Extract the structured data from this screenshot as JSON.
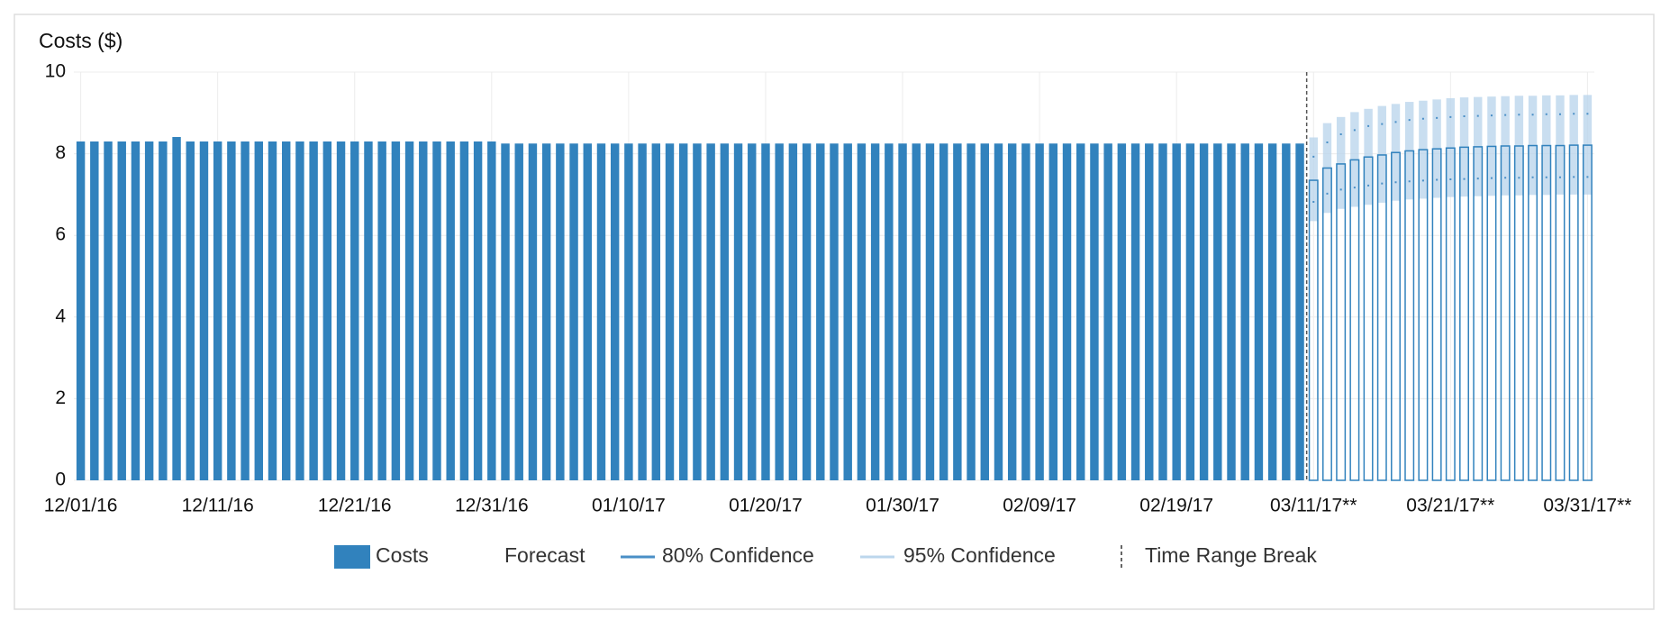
{
  "chart_data": {
    "type": "bar",
    "title": "Costs ($)",
    "categories": [
      "12/01/16",
      null,
      null,
      null,
      null,
      null,
      null,
      null,
      null,
      null,
      "12/11/16",
      null,
      null,
      null,
      null,
      null,
      null,
      null,
      null,
      null,
      "12/21/16",
      null,
      null,
      null,
      null,
      null,
      null,
      null,
      null,
      null,
      "12/31/16",
      null,
      null,
      null,
      null,
      null,
      null,
      null,
      null,
      null,
      "01/10/17",
      null,
      null,
      null,
      null,
      null,
      null,
      null,
      null,
      null,
      "01/20/17",
      null,
      null,
      null,
      null,
      null,
      null,
      null,
      null,
      null,
      "01/30/17",
      null,
      null,
      null,
      null,
      null,
      null,
      null,
      null,
      null,
      "02/09/17",
      null,
      null,
      null,
      null,
      null,
      null,
      null,
      null,
      null,
      "02/19/17",
      null,
      null,
      null,
      null,
      null,
      null,
      null,
      null,
      null,
      "03/11/17**",
      null,
      null,
      null,
      null,
      null,
      null,
      null,
      null,
      null,
      "03/21/17**",
      null,
      null,
      null,
      null,
      null,
      null,
      null,
      null,
      null,
      "03/31/17**"
    ],
    "series": [
      {
        "name": "Costs",
        "color": "#3182bd",
        "values": [
          8.3,
          8.3,
          8.3,
          8.3,
          8.3,
          8.3,
          8.3,
          8.41,
          8.3,
          8.3,
          8.3,
          8.3,
          8.3,
          8.3,
          8.3,
          8.3,
          8.3,
          8.3,
          8.3,
          8.3,
          8.3,
          8.3,
          8.3,
          8.3,
          8.3,
          8.3,
          8.3,
          8.3,
          8.3,
          8.3,
          8.3,
          8.25,
          8.25,
          8.25,
          8.25,
          8.25,
          8.25,
          8.25,
          8.25,
          8.25,
          8.25,
          8.25,
          8.25,
          8.25,
          8.25,
          8.25,
          8.25,
          8.25,
          8.25,
          8.25,
          8.25,
          8.25,
          8.25,
          8.25,
          8.25,
          8.25,
          8.25,
          8.25,
          8.25,
          8.25,
          8.25,
          8.25,
          8.25,
          8.25,
          8.25,
          8.25,
          8.25,
          8.25,
          8.25,
          8.25,
          8.25,
          8.25,
          8.25,
          8.25,
          8.25,
          8.25,
          8.25,
          8.25,
          8.25,
          8.25,
          8.25,
          8.25,
          8.25,
          8.25,
          8.25,
          8.25,
          8.25,
          8.25,
          8.25,
          8.25,
          null,
          null,
          null,
          null,
          null,
          null,
          null,
          null,
          null,
          null,
          null,
          null,
          null,
          null,
          null,
          null,
          null,
          null,
          null,
          null,
          null
        ]
      },
      {
        "name": "Forecast",
        "color": "#3182bd",
        "values": [
          null,
          null,
          null,
          null,
          null,
          null,
          null,
          null,
          null,
          null,
          null,
          null,
          null,
          null,
          null,
          null,
          null,
          null,
          null,
          null,
          null,
          null,
          null,
          null,
          null,
          null,
          null,
          null,
          null,
          null,
          null,
          null,
          null,
          null,
          null,
          null,
          null,
          null,
          null,
          null,
          null,
          null,
          null,
          null,
          null,
          null,
          null,
          null,
          null,
          null,
          null,
          null,
          null,
          null,
          null,
          null,
          null,
          null,
          null,
          null,
          null,
          null,
          null,
          null,
          null,
          null,
          null,
          null,
          null,
          null,
          null,
          null,
          null,
          null,
          null,
          null,
          null,
          null,
          null,
          null,
          null,
          null,
          null,
          null,
          null,
          null,
          null,
          null,
          null,
          null,
          7.35,
          7.65,
          7.75,
          7.85,
          7.92,
          7.97,
          8.03,
          8.07,
          8.1,
          8.12,
          8.14,
          8.16,
          8.17,
          8.18,
          8.19,
          8.19,
          8.2,
          8.2,
          8.2,
          8.21,
          8.21
        ]
      },
      {
        "name": "80% Confidence",
        "color": "#4a8fc6",
        "low": [
          null,
          null,
          null,
          null,
          null,
          null,
          null,
          null,
          null,
          null,
          null,
          null,
          null,
          null,
          null,
          null,
          null,
          null,
          null,
          null,
          null,
          null,
          null,
          null,
          null,
          null,
          null,
          null,
          null,
          null,
          null,
          null,
          null,
          null,
          null,
          null,
          null,
          null,
          null,
          null,
          null,
          null,
          null,
          null,
          null,
          null,
          null,
          null,
          null,
          null,
          null,
          null,
          null,
          null,
          null,
          null,
          null,
          null,
          null,
          null,
          null,
          null,
          null,
          null,
          null,
          null,
          null,
          null,
          null,
          null,
          null,
          null,
          null,
          null,
          null,
          null,
          null,
          null,
          null,
          null,
          null,
          null,
          null,
          null,
          null,
          null,
          null,
          null,
          null,
          null,
          6.8,
          7.0,
          7.1,
          7.15,
          7.2,
          7.25,
          7.28,
          7.3,
          7.32,
          7.34,
          7.35,
          7.36,
          7.37,
          7.38,
          7.39,
          7.39,
          7.4,
          7.4,
          7.4,
          7.41,
          7.41
        ],
        "high": [
          null,
          null,
          null,
          null,
          null,
          null,
          null,
          null,
          null,
          null,
          null,
          null,
          null,
          null,
          null,
          null,
          null,
          null,
          null,
          null,
          null,
          null,
          null,
          null,
          null,
          null,
          null,
          null,
          null,
          null,
          null,
          null,
          null,
          null,
          null,
          null,
          null,
          null,
          null,
          null,
          null,
          null,
          null,
          null,
          null,
          null,
          null,
          null,
          null,
          null,
          null,
          null,
          null,
          null,
          null,
          null,
          null,
          null,
          null,
          null,
          null,
          null,
          null,
          null,
          null,
          null,
          null,
          null,
          null,
          null,
          null,
          null,
          null,
          null,
          null,
          null,
          null,
          null,
          null,
          null,
          null,
          null,
          null,
          null,
          null,
          null,
          null,
          null,
          null,
          null,
          7.95,
          8.3,
          8.5,
          8.6,
          8.7,
          8.75,
          8.8,
          8.85,
          8.88,
          8.9,
          8.92,
          8.94,
          8.95,
          8.96,
          8.97,
          8.98,
          8.98,
          8.99,
          8.99,
          9.0,
          9.0
        ]
      },
      {
        "name": "95% Confidence",
        "color": "#bcd6ec",
        "low": [
          null,
          null,
          null,
          null,
          null,
          null,
          null,
          null,
          null,
          null,
          null,
          null,
          null,
          null,
          null,
          null,
          null,
          null,
          null,
          null,
          null,
          null,
          null,
          null,
          null,
          null,
          null,
          null,
          null,
          null,
          null,
          null,
          null,
          null,
          null,
          null,
          null,
          null,
          null,
          null,
          null,
          null,
          null,
          null,
          null,
          null,
          null,
          null,
          null,
          null,
          null,
          null,
          null,
          null,
          null,
          null,
          null,
          null,
          null,
          null,
          null,
          null,
          null,
          null,
          null,
          null,
          null,
          null,
          null,
          null,
          null,
          null,
          null,
          null,
          null,
          null,
          null,
          null,
          null,
          null,
          null,
          null,
          null,
          null,
          null,
          null,
          null,
          null,
          null,
          null,
          6.35,
          6.55,
          6.65,
          6.7,
          6.75,
          6.8,
          6.85,
          6.88,
          6.9,
          6.92,
          6.94,
          6.95,
          6.96,
          6.97,
          6.98,
          6.98,
          6.99,
          6.99,
          7.0,
          7.0,
          7.0
        ],
        "high": [
          null,
          null,
          null,
          null,
          null,
          null,
          null,
          null,
          null,
          null,
          null,
          null,
          null,
          null,
          null,
          null,
          null,
          null,
          null,
          null,
          null,
          null,
          null,
          null,
          null,
          null,
          null,
          null,
          null,
          null,
          null,
          null,
          null,
          null,
          null,
          null,
          null,
          null,
          null,
          null,
          null,
          null,
          null,
          null,
          null,
          null,
          null,
          null,
          null,
          null,
          null,
          null,
          null,
          null,
          null,
          null,
          null,
          null,
          null,
          null,
          null,
          null,
          null,
          null,
          null,
          null,
          null,
          null,
          null,
          null,
          null,
          null,
          null,
          null,
          null,
          null,
          null,
          null,
          null,
          null,
          null,
          null,
          null,
          null,
          null,
          null,
          null,
          null,
          null,
          null,
          8.4,
          8.75,
          8.9,
          9.02,
          9.1,
          9.17,
          9.22,
          9.27,
          9.3,
          9.33,
          9.36,
          9.38,
          9.39,
          9.4,
          9.41,
          9.42,
          9.42,
          9.43,
          9.43,
          9.44,
          9.44
        ]
      }
    ],
    "break_label": "Time Range Break",
    "ylim": [
      0,
      10
    ],
    "yticks": [
      0,
      2,
      4,
      6,
      8,
      10
    ],
    "grid": true
  }
}
